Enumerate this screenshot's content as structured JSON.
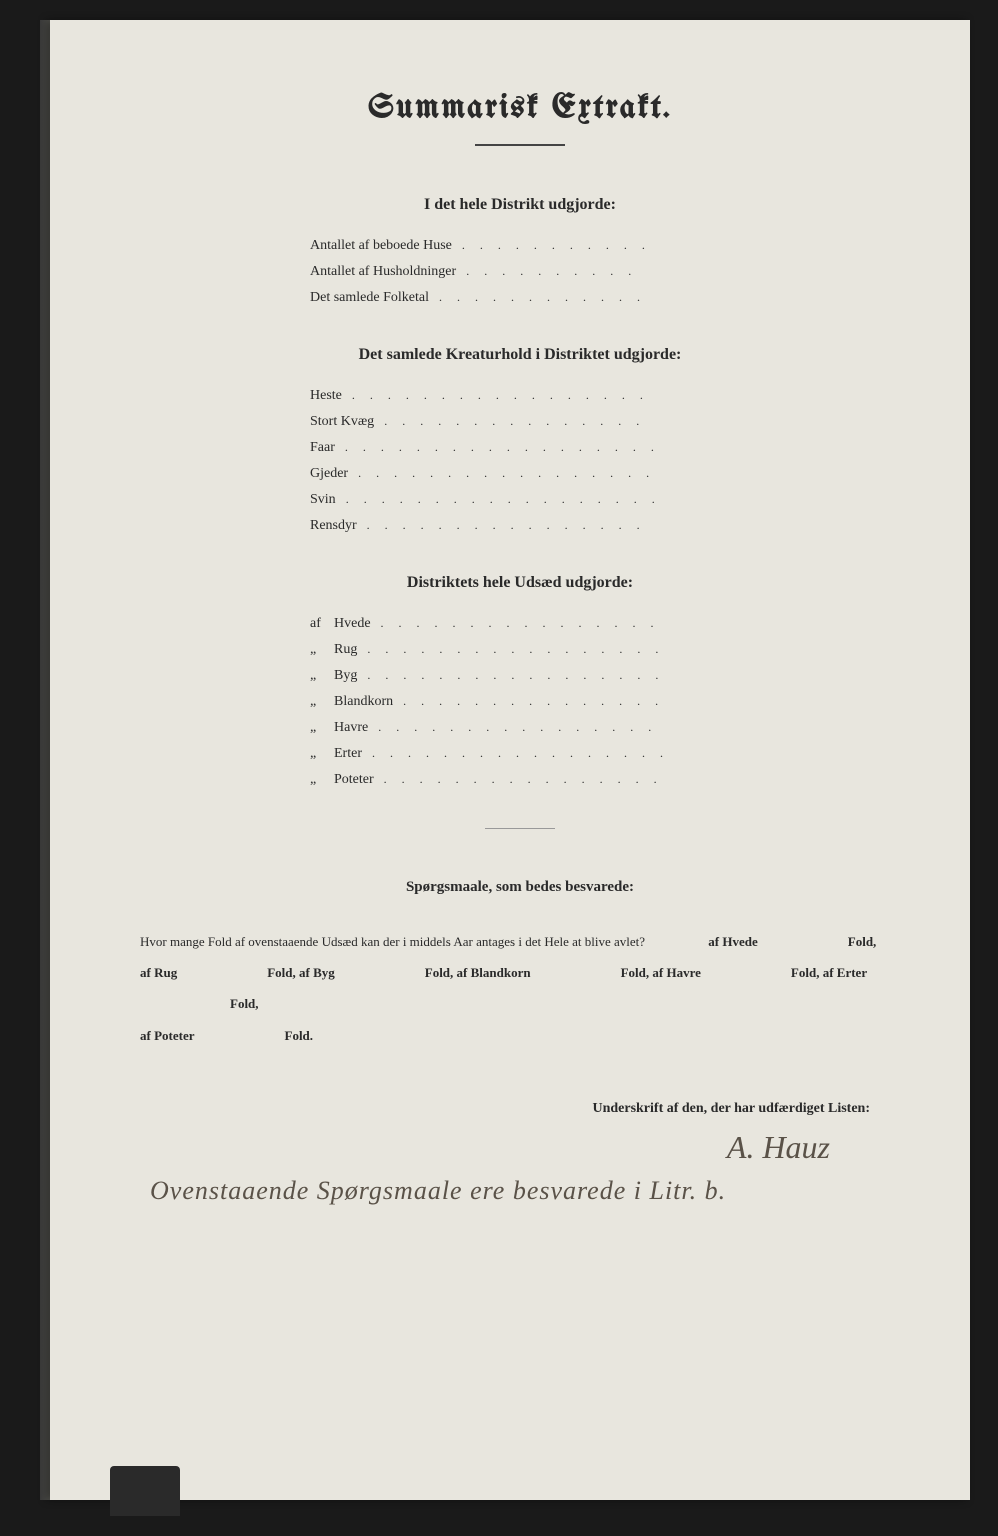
{
  "page": {
    "background_color": "#e8e6de",
    "text_color": "#2a2a2a",
    "handwriting_color": "#5a5248"
  },
  "title": "Summarisk Extrakt.",
  "section1": {
    "heading": "I det hele Distrikt udgjorde:",
    "items": [
      "Antallet af beboede Huse",
      "Antallet af Husholdninger",
      "Det samlede Folketal"
    ]
  },
  "section2": {
    "heading": "Det samlede Kreaturhold i Distriktet udgjorde:",
    "items": [
      "Heste",
      "Stort Kvæg",
      "Faar",
      "Gjeder",
      "Svin",
      "Rensdyr"
    ]
  },
  "section3": {
    "heading": "Distriktets hele Udsæd udgjorde:",
    "items": [
      {
        "prefix": "af",
        "label": "Hvede"
      },
      {
        "prefix": "„",
        "label": "Rug"
      },
      {
        "prefix": "„",
        "label": "Byg"
      },
      {
        "prefix": "„",
        "label": "Blandkorn"
      },
      {
        "prefix": "„",
        "label": "Havre"
      },
      {
        "prefix": "„",
        "label": "Erter"
      },
      {
        "prefix": "„",
        "label": "Poteter"
      }
    ]
  },
  "question": {
    "heading": "Spørgsmaale, som bedes besvarede:",
    "lead": "Hvor mange Fold af ovenstaaende Udsæd kan der i middels Aar antages i det Hele at blive avlet?",
    "parts": [
      "af Hvede",
      "Fold,",
      "af Rug",
      "Fold,",
      "af Byg",
      "Fold,",
      "af Blandkorn",
      "Fold,",
      "af Havre",
      "Fold,",
      "af Erter",
      "Fold,",
      "af Poteter",
      "Fold."
    ]
  },
  "signature": {
    "label": "Underskrift af den, der har udfærdiget Listen:",
    "name": "A. Hauz",
    "note": "Ovenstaaende Spørgsmaale ere besvarede i Litr. b."
  }
}
